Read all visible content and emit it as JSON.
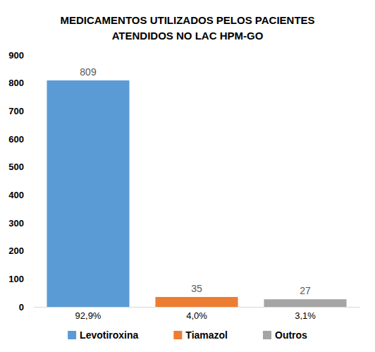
{
  "chart_data": {
    "type": "bar",
    "title": "MEDICAMENTOS UTILIZADOS PELOS PACIENTES\nATENDIDOS NO LAC HPM-GO",
    "categories": [
      "92,9%",
      "4,0%",
      "3,1%"
    ],
    "series": [
      {
        "name": "Levotiroxina",
        "color": "#5b9bd5",
        "values": [
          809,
          null,
          null
        ]
      },
      {
        "name": "Tiamazol",
        "color": "#ed7d31",
        "values": [
          null,
          35,
          null
        ]
      },
      {
        "name": "Outros",
        "color": "#a5a5a5",
        "values": [
          null,
          null,
          27
        ]
      }
    ],
    "ylim": [
      0,
      900
    ],
    "yticks": [
      0,
      100,
      200,
      300,
      400,
      500,
      600,
      700,
      800,
      900
    ],
    "grid": false,
    "legend": "bottom",
    "data_labels": true
  }
}
